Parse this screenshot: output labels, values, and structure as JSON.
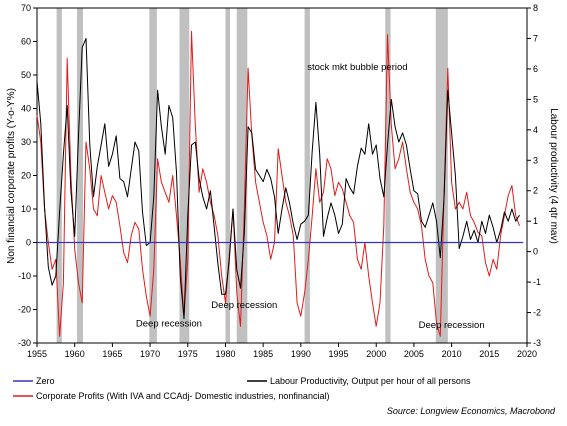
{
  "chart_data": {
    "type": "line",
    "xlabel": "",
    "ylabel_left": "Non financial corporate profits (Y-o-Y%)",
    "ylabel_right": "Labour productivity (4 qtr mav)",
    "xlim": [
      1955,
      2020
    ],
    "ylim_left": [
      -30,
      70
    ],
    "ylim_right": [
      -3,
      8
    ],
    "x_ticks": [
      "1955",
      "1960",
      "1965",
      "1970",
      "1975",
      "1980",
      "1985",
      "1990",
      "1995",
      "2000",
      "2005",
      "2010",
      "2015",
      "2020"
    ],
    "y_ticks_left": [
      "70",
      "60",
      "50",
      "40",
      "30",
      "20",
      "10",
      "0",
      "-10",
      "-20",
      "-30"
    ],
    "y_ticks_right": [
      "8",
      "7",
      "6",
      "5",
      "4",
      "3",
      "2",
      "1",
      "0",
      "-1",
      "-2",
      "-3"
    ],
    "recessions": [
      [
        1957.6,
        1958.3
      ],
      [
        1960.3,
        1961.1
      ],
      [
        1969.9,
        1970.9
      ],
      [
        1973.9,
        1975.2
      ],
      [
        1980.0,
        1980.6
      ],
      [
        1981.5,
        1982.9
      ],
      [
        1990.5,
        1991.2
      ],
      [
        2001.2,
        2001.9
      ],
      [
        2007.9,
        2009.5
      ]
    ],
    "annotations": [
      {
        "text": "stock mkt bubble period",
        "x": 1997.5,
        "y": 51.5
      },
      {
        "text": "Deep recession",
        "x": 1972.5,
        "y": -25
      },
      {
        "text": "Deep recession",
        "x": 1982.5,
        "y": -19.5
      },
      {
        "text": "Deep recession",
        "x": 2010,
        "y": -25.5
      }
    ],
    "series": [
      {
        "name": "Zero",
        "axis": "left",
        "color": "#3333cc",
        "x": [
          1955,
          2019.5
        ],
        "y": [
          0,
          0
        ]
      },
      {
        "name": "Labour Productivity, Output per hour of all persons",
        "axis": "right",
        "color": "#000000",
        "x": [
          1955,
          1955.5,
          1956,
          1956.5,
          1957,
          1957.5,
          1958,
          1958.5,
          1959,
          1959.5,
          1960,
          1960.5,
          1961,
          1961.5,
          1962,
          1962.5,
          1963,
          1963.5,
          1964,
          1964.5,
          1965,
          1965.5,
          1966,
          1966.5,
          1967,
          1967.5,
          1968,
          1968.5,
          1969,
          1969.5,
          1970,
          1970.5,
          1971,
          1971.5,
          1972,
          1972.5,
          1973,
          1973.5,
          1974,
          1974.5,
          1975,
          1975.5,
          1976,
          1976.5,
          1977,
          1977.5,
          1978,
          1978.5,
          1979,
          1979.5,
          1980,
          1980.5,
          1981,
          1981.5,
          1982,
          1982.5,
          1983,
          1983.5,
          1984,
          1984.5,
          1985,
          1985.5,
          1986,
          1986.5,
          1987,
          1987.5,
          1988,
          1988.5,
          1989,
          1989.5,
          1990,
          1990.5,
          1991,
          1991.5,
          1992,
          1992.5,
          1993,
          1993.5,
          1994,
          1994.5,
          1995,
          1995.5,
          1996,
          1996.5,
          1997,
          1997.5,
          1998,
          1998.5,
          1999,
          1999.5,
          2000,
          2000.5,
          2001,
          2001.5,
          2002,
          2002.5,
          2003,
          2003.5,
          2004,
          2004.5,
          2005,
          2005.5,
          2006,
          2006.5,
          2007,
          2007.5,
          2008,
          2008.5,
          2009,
          2009.5,
          2010,
          2010.5,
          2011,
          2011.5,
          2012,
          2012.5,
          2013,
          2013.5,
          2014,
          2014.5,
          2015,
          2015.5,
          2016,
          2016.5,
          2017,
          2017.5,
          2018,
          2018.5,
          2019
        ],
        "y": [
          5.6,
          4.2,
          1.5,
          -0.5,
          -1.1,
          -0.8,
          1.3,
          3.2,
          4.8,
          2.0,
          0.5,
          3.8,
          6.7,
          7.0,
          3.5,
          1.8,
          2.8,
          3.5,
          4.2,
          2.8,
          3.2,
          3.8,
          2.4,
          2.3,
          1.8,
          2.7,
          3.6,
          3.3,
          1.3,
          0.2,
          0.3,
          1.8,
          5.3,
          4.1,
          3.2,
          4.8,
          4.4,
          2.6,
          -0.8,
          -2.2,
          1.2,
          3.5,
          3.6,
          2.4,
          1.8,
          1.4,
          2.0,
          0.8,
          -0.4,
          -1.4,
          -1.4,
          -0.3,
          1.4,
          -0.6,
          -1.2,
          0.6,
          4.1,
          3.9,
          2.7,
          2.5,
          2.3,
          2.7,
          2.4,
          1.8,
          0.6,
          1.4,
          2.1,
          1.6,
          0.9,
          0.4,
          0.9,
          1.0,
          1.2,
          3.3,
          4.9,
          3.2,
          0.5,
          1.1,
          1.6,
          1.2,
          0.6,
          0.9,
          2.4,
          2.1,
          1.9,
          2.8,
          3.4,
          3.2,
          4.2,
          3.2,
          3.5,
          2.4,
          1.8,
          3.5,
          5.0,
          4.1,
          3.6,
          3.9,
          3.5,
          2.7,
          2.0,
          1.9,
          1.0,
          0.8,
          1.2,
          1.6,
          1.0,
          -0.2,
          1.8,
          5.3,
          3.9,
          2.5,
          0.1,
          0.5,
          1.0,
          0.4,
          0.7,
          0.3,
          1.0,
          0.6,
          1.2,
          0.8,
          0.3,
          0.7,
          1.3,
          1.0,
          1.4,
          1.0,
          1.2
        ]
      },
      {
        "name": "Corporate Profits (With IVA and CCAdj- Domestic industries, nonfinancial)",
        "axis": "left",
        "color": "#e31b1b",
        "x": [
          1955,
          1955.5,
          1956,
          1956.5,
          1957,
          1957.5,
          1958,
          1958.5,
          1959,
          1959.5,
          1960,
          1960.5,
          1961,
          1961.5,
          1962,
          1962.5,
          1963,
          1963.5,
          1964,
          1964.5,
          1965,
          1965.5,
          1966,
          1966.5,
          1967,
          1967.5,
          1968,
          1968.5,
          1969,
          1969.5,
          1970,
          1970.5,
          1971,
          1971.5,
          1972,
          1972.5,
          1973,
          1973.5,
          1974,
          1974.5,
          1975,
          1975.5,
          1976,
          1976.5,
          1977,
          1977.5,
          1978,
          1978.5,
          1979,
          1979.5,
          1980,
          1980.5,
          1981,
          1981.5,
          1982,
          1982.5,
          1983,
          1983.5,
          1984,
          1984.5,
          1985,
          1985.5,
          1986,
          1986.5,
          1987,
          1987.5,
          1988,
          1988.5,
          1989,
          1989.5,
          1990,
          1990.5,
          1991,
          1991.5,
          1992,
          1992.5,
          1993,
          1993.5,
          1994,
          1994.5,
          1995,
          1995.5,
          1996,
          1996.5,
          1997,
          1997.5,
          1998,
          1998.5,
          1999,
          1999.5,
          2000,
          2000.5,
          2001,
          2001.5,
          2002,
          2002.5,
          2003,
          2003.5,
          2004,
          2004.5,
          2005,
          2005.5,
          2006,
          2006.5,
          2007,
          2007.5,
          2008,
          2008.5,
          2009,
          2009.5,
          2010,
          2010.5,
          2011,
          2011.5,
          2012,
          2012.5,
          2013,
          2013.5,
          2014,
          2014.5,
          2015,
          2015.5,
          2016,
          2016.5,
          2017,
          2017.5,
          2018,
          2018.5,
          2019
        ],
        "y": [
          38,
          30,
          10,
          0,
          -8,
          -5,
          -28,
          -12,
          55,
          20,
          -2,
          -12,
          -18,
          30,
          22,
          10,
          8,
          20,
          15,
          10,
          14,
          12,
          5,
          -3,
          -6,
          2,
          6,
          4,
          -8,
          -16,
          -22,
          -8,
          25,
          18,
          15,
          12,
          20,
          8,
          -5,
          -22,
          -5,
          63,
          35,
          15,
          22,
          18,
          12,
          8,
          2,
          -10,
          -18,
          -4,
          10,
          -15,
          -25,
          10,
          52,
          32,
          18,
          12,
          6,
          2,
          -5,
          0,
          28,
          20,
          12,
          8,
          2,
          -18,
          -22,
          -15,
          -5,
          8,
          22,
          12,
          15,
          25,
          22,
          14,
          18,
          16,
          12,
          8,
          6,
          -5,
          -8,
          0,
          -10,
          -18,
          -25,
          -18,
          5,
          62,
          35,
          22,
          25,
          30,
          22,
          15,
          12,
          10,
          5,
          -5,
          -10,
          -12,
          -24,
          -28,
          15,
          52,
          18,
          10,
          12,
          10,
          15,
          8,
          6,
          3,
          2,
          -6,
          -10,
          -5,
          -8,
          2,
          8,
          14,
          17,
          8,
          5
        ]
      }
    ]
  },
  "legend": {
    "zero": "Zero",
    "labour": "Labour Productivity, Output per hour of all persons",
    "profits": "Corporate Profits (With IVA and CCAdj- Domestic industries, nonfinancial)"
  },
  "source": "Source: Longview Economics, Macrobond"
}
